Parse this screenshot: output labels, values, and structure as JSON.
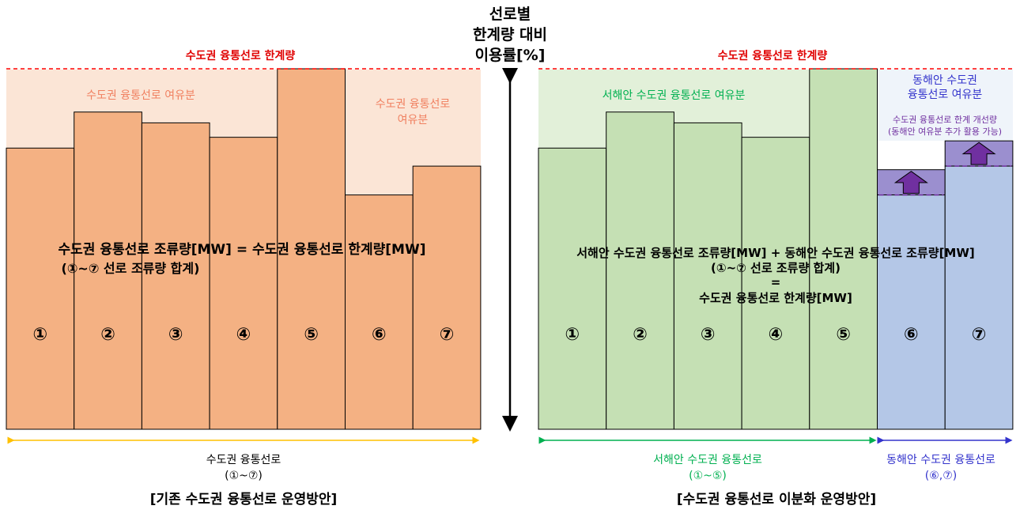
{
  "center_axis": {
    "lines": [
      "선로별",
      "한계량 대비",
      "이용률[%]"
    ]
  },
  "left_panel": {
    "limit_label": "수도권 융통선로 한계량",
    "margin_label_main": "수도권 융통선로 여유분",
    "margin_label_right": [
      "수도권 융통선로",
      "여유분"
    ],
    "formula": [
      "수도권 융통선로 조류량[MW] = 수도권 융통선로 한계량[MW]",
      "(①~⑦ 선로 조류량 합계)"
    ],
    "bar_labels": [
      "①",
      "②",
      "③",
      "④",
      "⑤",
      "⑥",
      "⑦"
    ],
    "bar_utilization": [
      0.78,
      0.88,
      0.85,
      0.81,
      1.0,
      0.65,
      0.73
    ],
    "range_label": [
      "수도권 융통선로",
      "(①~⑦)"
    ],
    "caption": "[기존 수도권 융통선로 운영방안]",
    "colors": {
      "bar": "#f4b183",
      "margin": "#fbe5d6",
      "limit": "#ff0000",
      "range": "#ffc000",
      "margin_text": "#f08060"
    }
  },
  "right_panel": {
    "limit_label": "수도권 융통선로 한계량",
    "west_margin_label": "서해안 수도권 융통선로 여유분",
    "east_margin_label": [
      "동해안 수도권",
      "융통선로 여유분"
    ],
    "improvement_label": [
      "수도권 융통선로 한계 개선량",
      "(동해안 여유분 추가 활용 가능)"
    ],
    "formula": [
      "서해안 수도권 융통선로 조류량[MW] + 동해안 수도권 융통선로 조류량[MW]",
      "(①~⑦ 선로 조류량 합계)",
      "=",
      "수도권 융통선로 한계량[MW]"
    ],
    "bar_labels": [
      "①",
      "②",
      "③",
      "④",
      "⑤",
      "⑥",
      "⑦"
    ],
    "bar_utilization": [
      0.78,
      0.88,
      0.85,
      0.81,
      1.0,
      0.65,
      0.73
    ],
    "bar_limit_after": [
      null,
      null,
      null,
      null,
      null,
      0.72,
      0.8
    ],
    "west_range_label": [
      "서해안 수도권 융통선로",
      "(①~⑤)"
    ],
    "east_range_label": [
      "동해안 수도권 융통선로",
      "(⑥,⑦)"
    ],
    "caption": "[수도권 융통선로 이분화 운영방안]",
    "colors": {
      "west_bar": "#c5e0b4",
      "west_margin": "#e2f0d9",
      "east_bar": "#b4c7e7",
      "east_margin": "#eff4fa",
      "improvement": "#9b8fcf",
      "arrow": "#7030a0",
      "west_text": "#00b050",
      "east_text": "#3333cc",
      "improve_text": "#7030a0"
    }
  }
}
